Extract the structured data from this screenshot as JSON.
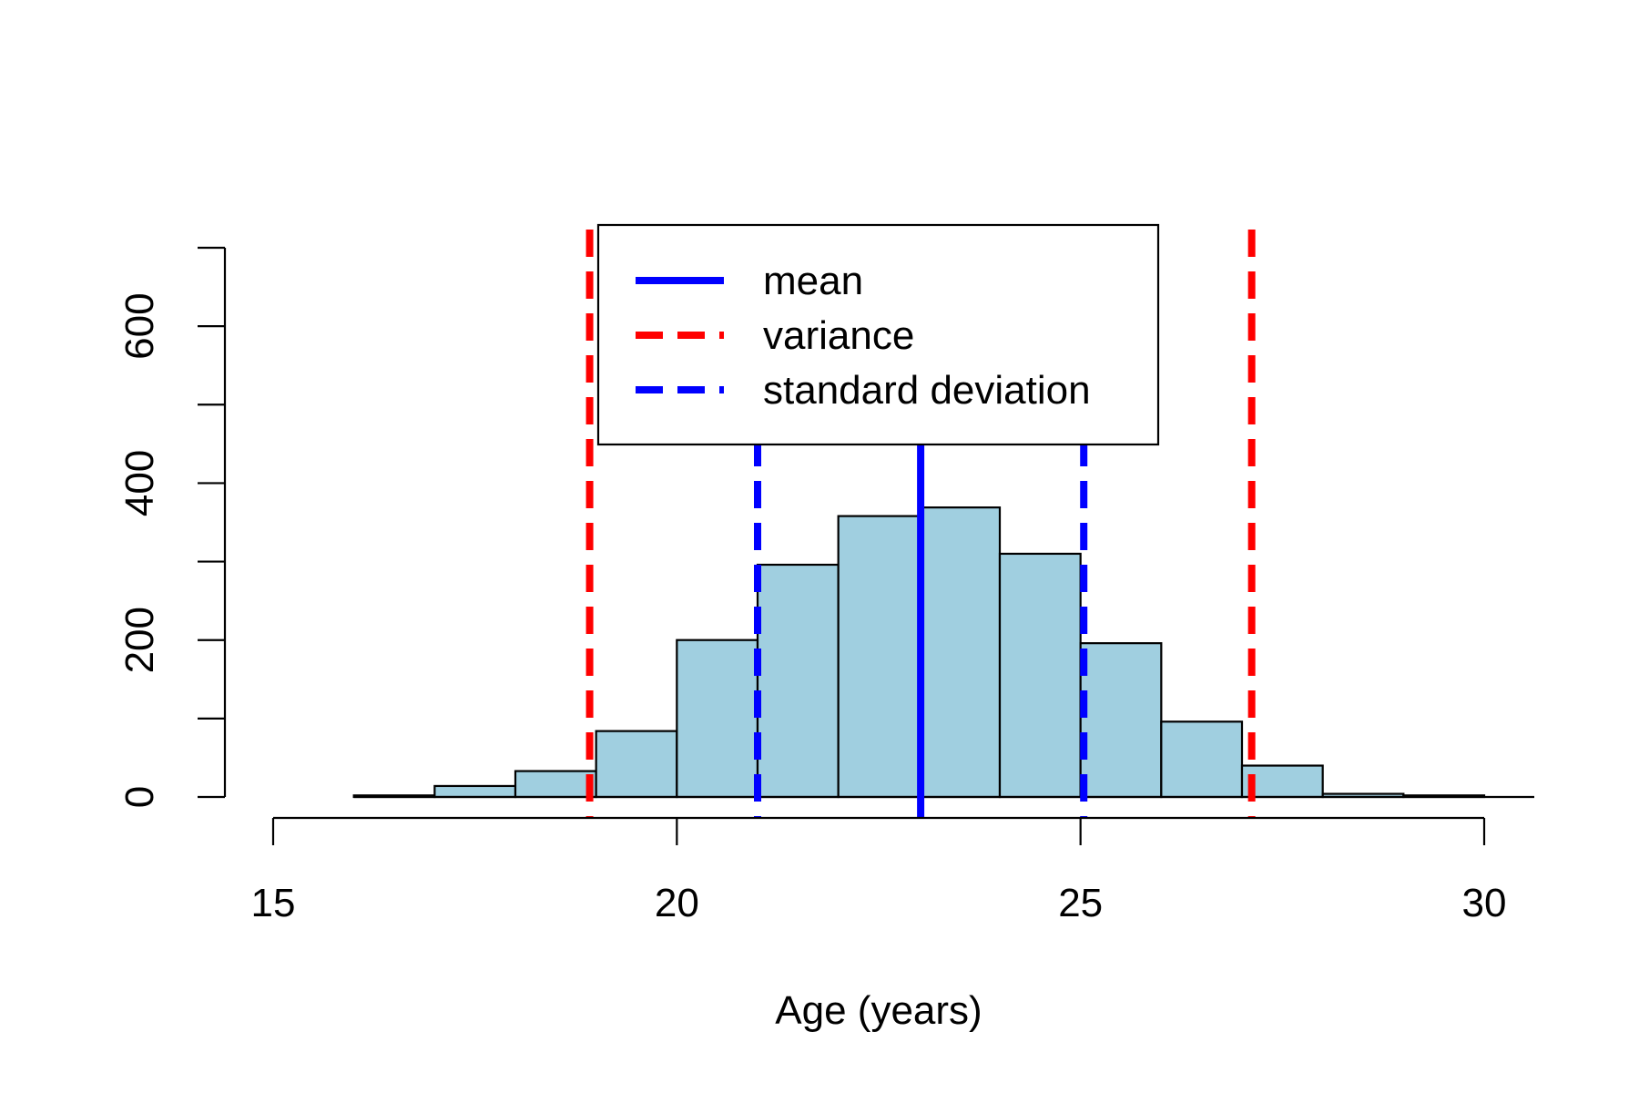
{
  "chart_data": {
    "type": "histogram",
    "xlabel": "Age (years)",
    "ylabel": "",
    "xlim": [
      15,
      30
    ],
    "ylim": [
      0,
      700
    ],
    "x_ticks": [
      15,
      20,
      25,
      30
    ],
    "y_ticks": [
      0,
      200,
      400,
      600
    ],
    "y_minor_ticks": [
      0,
      100,
      200,
      300,
      400,
      500,
      600,
      700
    ],
    "bar_color": "#a0cfe0",
    "bins": [
      {
        "x0": 16,
        "x1": 17,
        "value": 2
      },
      {
        "x0": 17,
        "x1": 18,
        "value": 14
      },
      {
        "x0": 18,
        "x1": 19,
        "value": 33
      },
      {
        "x0": 19,
        "x1": 20,
        "value": 84
      },
      {
        "x0": 20,
        "x1": 21,
        "value": 200
      },
      {
        "x0": 21,
        "x1": 22,
        "value": 296
      },
      {
        "x0": 22,
        "x1": 23,
        "value": 358
      },
      {
        "x0": 23,
        "x1": 24,
        "value": 369
      },
      {
        "x0": 24,
        "x1": 25,
        "value": 310
      },
      {
        "x0": 25,
        "x1": 26,
        "value": 196
      },
      {
        "x0": 26,
        "x1": 27,
        "value": 96
      },
      {
        "x0": 27,
        "x1": 28,
        "value": 40
      },
      {
        "x0": 28,
        "x1": 29,
        "value": 4
      },
      {
        "x0": 29,
        "x1": 30,
        "value": 2
      }
    ],
    "reference_lines": [
      {
        "name": "mean",
        "x": 23.02,
        "color": "#0000ff",
        "style": "solid"
      },
      {
        "name": "variance",
        "x": 18.92,
        "color": "#ff0000",
        "style": "dashed"
      },
      {
        "name": "variance",
        "x": 27.12,
        "color": "#ff0000",
        "style": "dashed"
      },
      {
        "name": "standard deviation",
        "x": 21.0,
        "color": "#0000ff",
        "style": "dashed"
      },
      {
        "name": "standard deviation",
        "x": 25.04,
        "color": "#0000ff",
        "style": "dashed"
      }
    ],
    "legend": {
      "position": "top",
      "entries": [
        {
          "label": "mean",
          "color": "#0000ff",
          "style": "solid"
        },
        {
          "label": "variance",
          "color": "#ff0000",
          "style": "dashed"
        },
        {
          "label": "standard deviation",
          "color": "#0000ff",
          "style": "dashed"
        }
      ]
    }
  }
}
